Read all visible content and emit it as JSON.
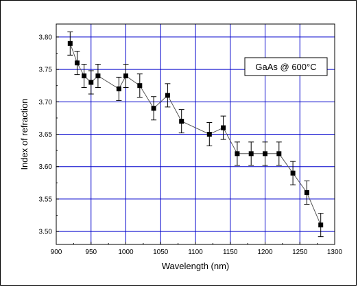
{
  "chart_data": {
    "type": "scatter",
    "xlabel": "Wavelength (nm)",
    "ylabel": "Index of refraction",
    "xlim": [
      900,
      1300
    ],
    "ylim": [
      3.48,
      3.82
    ],
    "xticks": [
      900,
      950,
      1000,
      1050,
      1100,
      1150,
      1200,
      1250,
      1300
    ],
    "yticks": [
      3.5,
      3.55,
      3.6,
      3.65,
      3.7,
      3.75,
      3.8
    ],
    "xtick_labels": [
      "900",
      "950",
      "1000",
      "1050",
      "1100",
      "1150",
      "1200",
      "1250",
      "1300"
    ],
    "ytick_labels": [
      "3.50",
      "3.55",
      "3.60",
      "3.65",
      "3.70",
      "3.75",
      "3.80"
    ],
    "grid": true,
    "grid_color": "#0000cc",
    "legend_position": "top-right",
    "series": [
      {
        "name": "GaAs @ 600°C",
        "marker": "square",
        "color": "#000000",
        "x": [
          920,
          930,
          940,
          950,
          960,
          990,
          1000,
          1020,
          1040,
          1060,
          1080,
          1120,
          1140,
          1160,
          1180,
          1200,
          1220,
          1240,
          1260,
          1280
        ],
        "y": [
          3.79,
          3.76,
          3.74,
          3.73,
          3.74,
          3.72,
          3.74,
          3.725,
          3.69,
          3.71,
          3.67,
          3.65,
          3.66,
          3.62,
          3.62,
          3.62,
          3.62,
          3.59,
          3.56,
          3.51
        ],
        "yerr": [
          0.018,
          0.018,
          0.018,
          0.018,
          0.018,
          0.018,
          0.018,
          0.018,
          0.018,
          0.018,
          0.018,
          0.018,
          0.018,
          0.018,
          0.018,
          0.018,
          0.018,
          0.018,
          0.018,
          0.018
        ]
      }
    ]
  }
}
